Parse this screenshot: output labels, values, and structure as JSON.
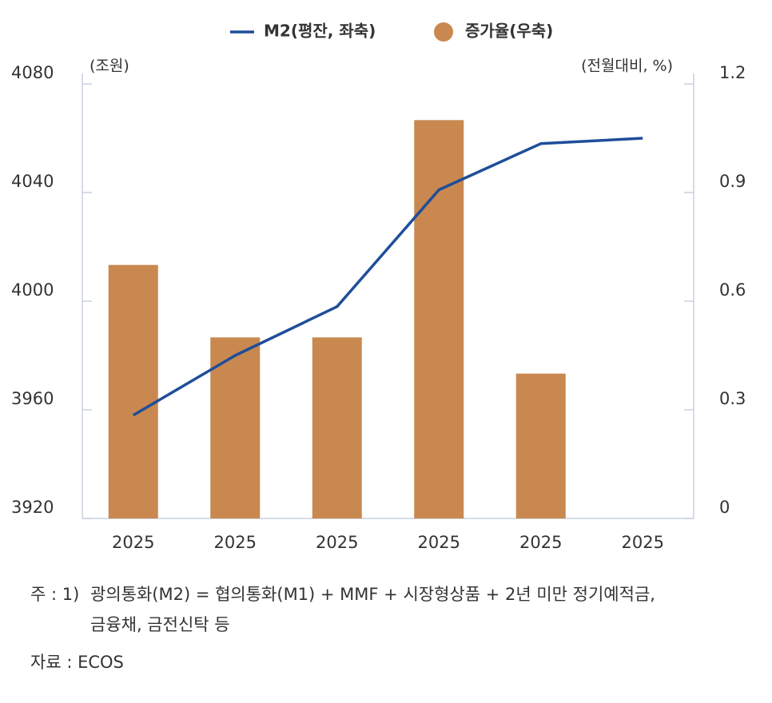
{
  "chart_data": {
    "type": "bar-line",
    "legend_position": "top",
    "y_unit": "(조원)",
    "y2_unit": "(전월대비, %)",
    "categories": [
      "2025",
      "2025",
      "2025",
      "2025",
      "2025",
      "2025"
    ],
    "series": [
      {
        "name": "M2(평잔, 좌축)",
        "type": "line",
        "color": "#1f4e99",
        "axis": "y",
        "values": [
          3958,
          3980,
          3998,
          4041,
          4058,
          4060
        ]
      },
      {
        "name": "증가율(우축)",
        "type": "bar",
        "color": "#c98850",
        "axis": "y2",
        "values": [
          0.7,
          0.5,
          0.5,
          1.1,
          0.4,
          null
        ]
      }
    ],
    "ylim": [
      3920,
      4080
    ],
    "yticks": [
      3920,
      3960,
      4000,
      4040,
      4080
    ],
    "y2lim": [
      0,
      1.2
    ],
    "y2ticks": [
      0,
      0.3,
      0.6,
      0.9,
      1.2
    ]
  },
  "notes": {
    "label": "주 : 1)",
    "lines": [
      "광의통화(M2) = 협의통화(M1) + MMF + 시장형상품 + 2년 미만 정기예적금,",
      "금융채, 금전신탁 등"
    ],
    "source": "자료 :  ECOS"
  }
}
